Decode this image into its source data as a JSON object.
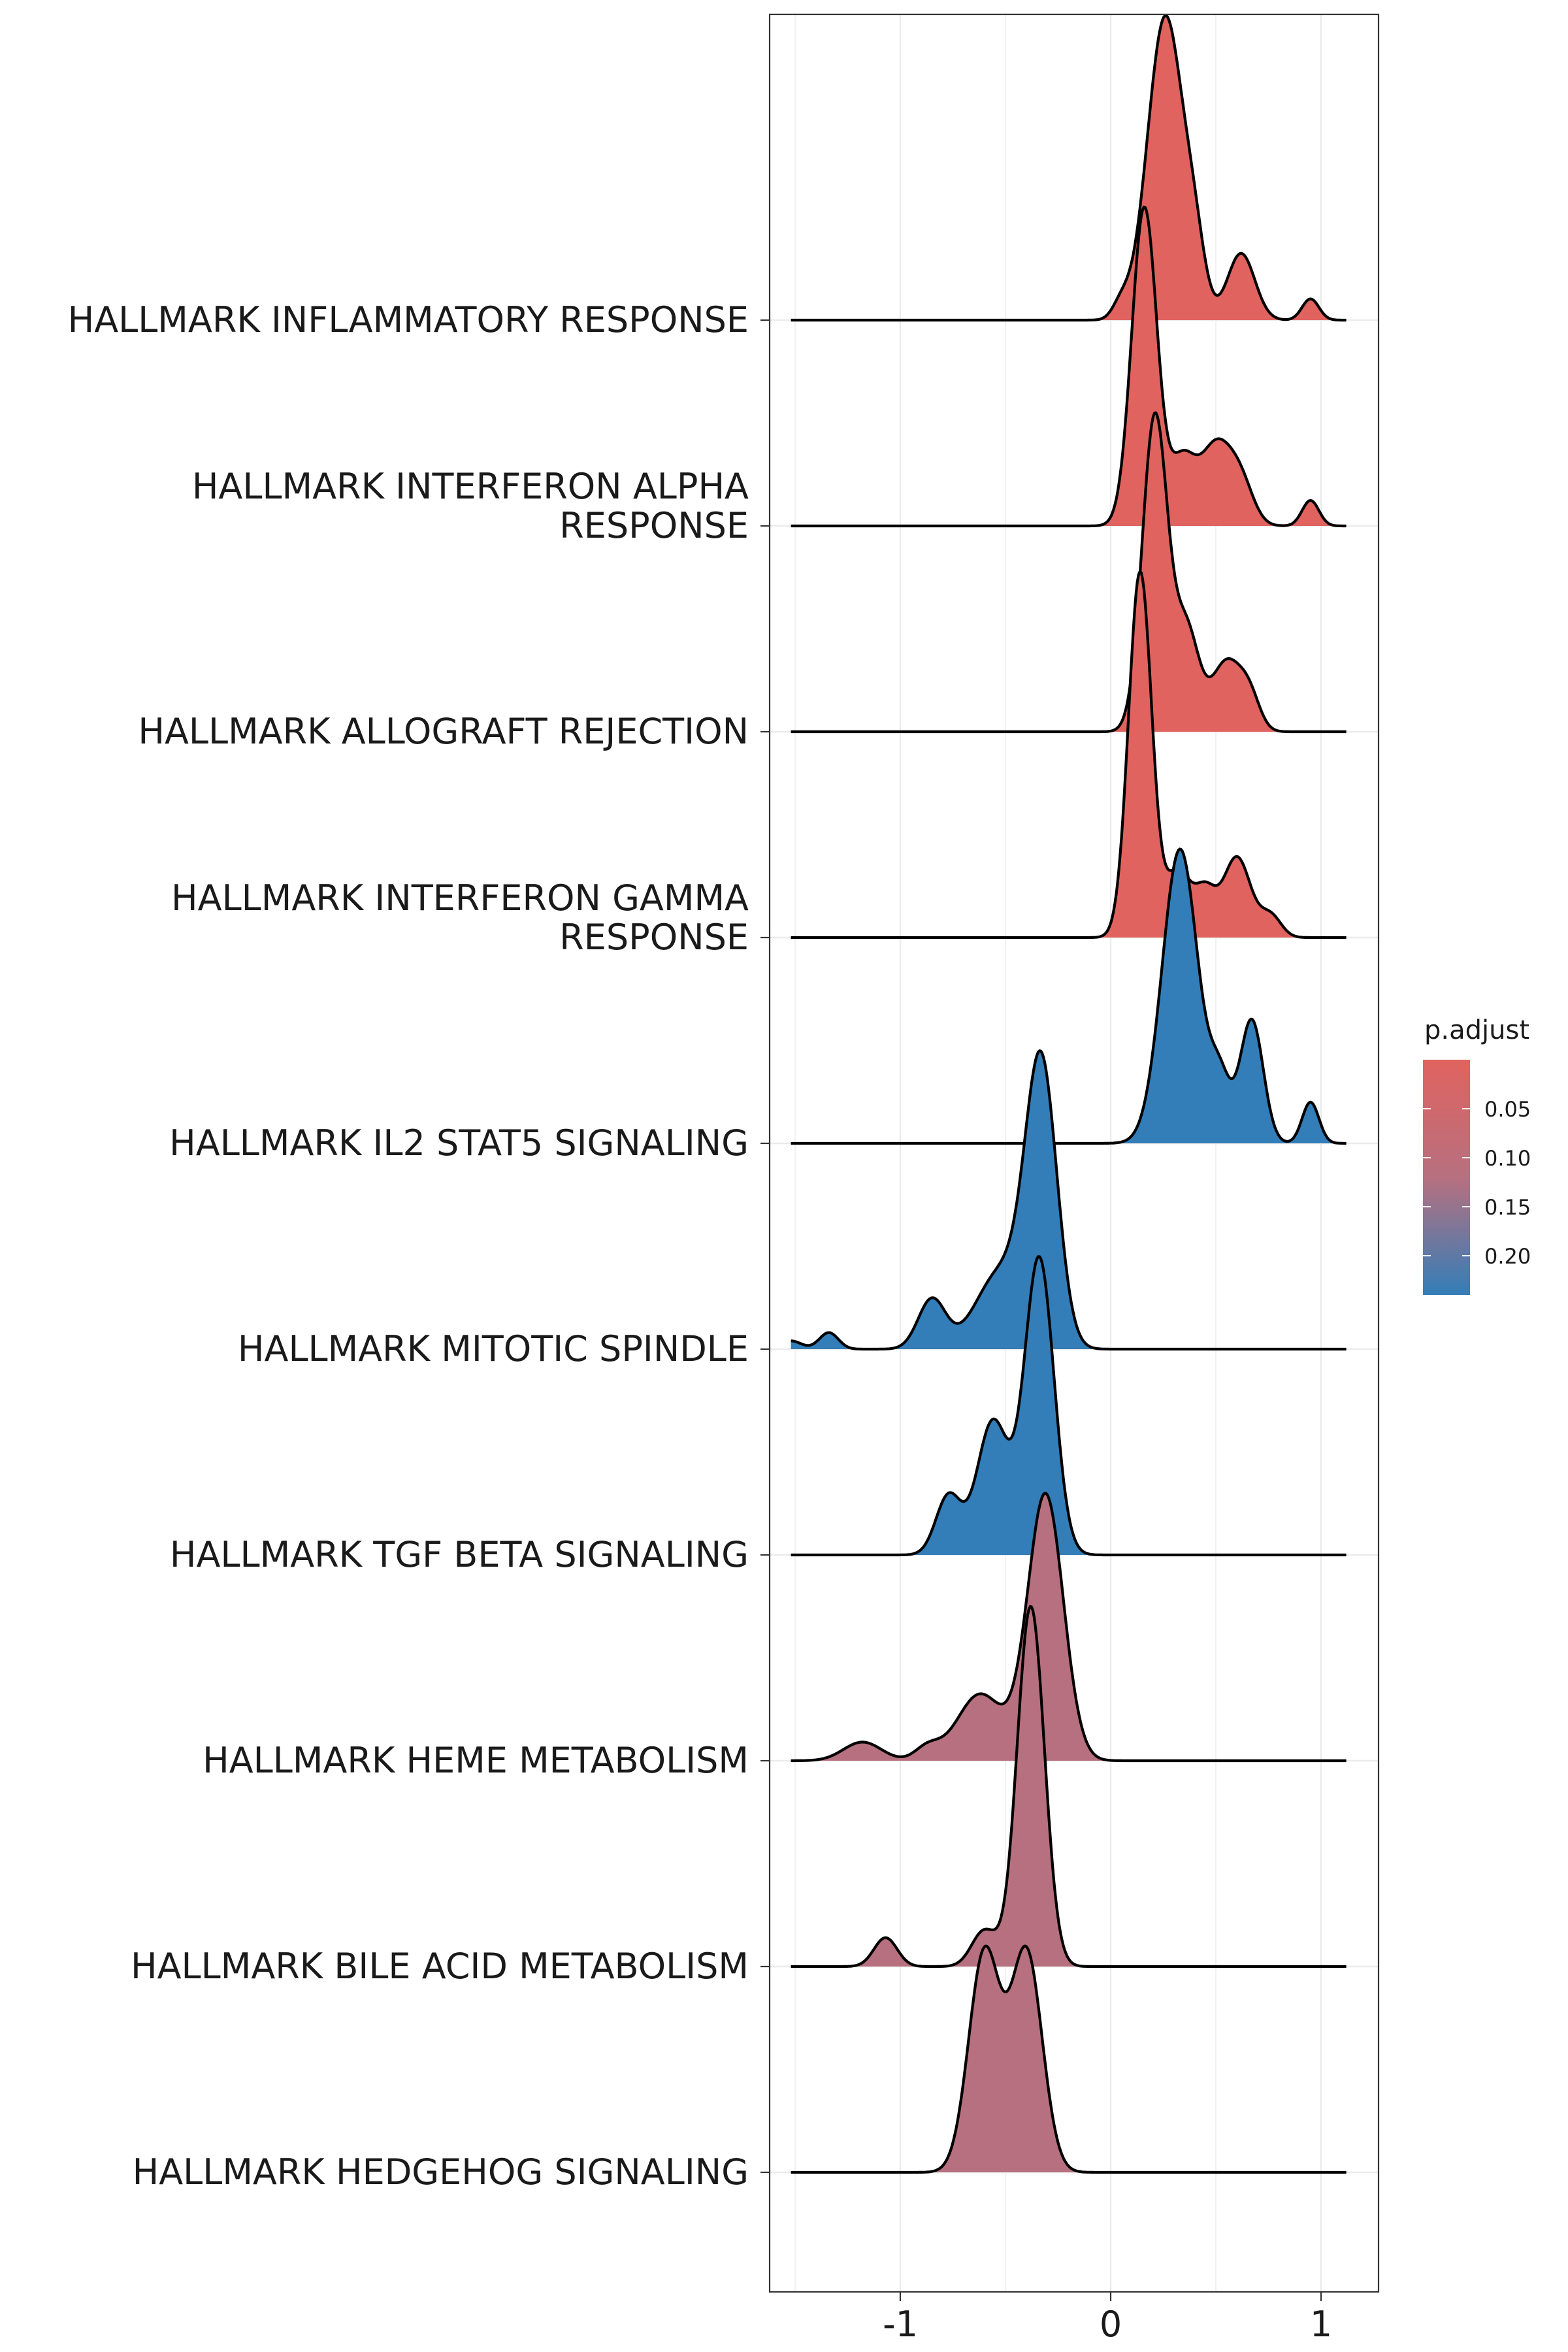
{
  "chart_data": {
    "type": "ridgeline",
    "title": "",
    "xlabel": "",
    "ylabel": "",
    "xlim": [
      -1.65,
      1.25
    ],
    "x_ticks": [
      -1,
      0,
      1
    ],
    "x_tick_labels": [
      "-1",
      "0",
      "1"
    ],
    "grid": true,
    "legend": {
      "title": "p.adjust",
      "placement": "right",
      "ticks": [
        0.05,
        0.1,
        0.15,
        0.2
      ],
      "tick_labels": [
        "0.05",
        "0.10",
        "0.15",
        "0.20"
      ],
      "range": [
        0.0,
        0.24
      ],
      "low_color": "#E0635F",
      "high_color": "#337EB8"
    },
    "series": [
      {
        "label": "HALLMARK INFLAMMATORY RESPONSE",
        "p_adjust": 0.0,
        "fill": "#E0635F",
        "x_range": [
          -1.52,
          1.12
        ],
        "ridge_height": 1.48,
        "peaks": [
          {
            "center": 0.26,
            "sd": 0.085,
            "height": 1.0
          },
          {
            "center": 0.4,
            "sd": 0.05,
            "height": 0.18
          },
          {
            "center": 0.62,
            "sd": 0.065,
            "height": 0.22
          },
          {
            "center": 0.95,
            "sd": 0.04,
            "height": 0.07
          },
          {
            "center": 0.05,
            "sd": 0.04,
            "height": 0.05
          }
        ]
      },
      {
        "label": "HALLMARK INTERFERON ALPHA RESPONSE",
        "label_lines": [
          "HALLMARK INTERFERON ALPHA",
          "RESPONSE"
        ],
        "p_adjust": 0.0,
        "fill": "#E0635F",
        "x_range": [
          -1.52,
          1.12
        ],
        "ridge_height": 1.55,
        "peaks": [
          {
            "center": 0.16,
            "sd": 0.06,
            "height": 1.0
          },
          {
            "center": 0.34,
            "sd": 0.06,
            "height": 0.2
          },
          {
            "center": 0.5,
            "sd": 0.075,
            "height": 0.25
          },
          {
            "center": 0.62,
            "sd": 0.06,
            "height": 0.12
          },
          {
            "center": 0.95,
            "sd": 0.04,
            "height": 0.08
          }
        ]
      },
      {
        "label": "HALLMARK ALLOGRAFT REJECTION",
        "p_adjust": 0.0,
        "fill": "#E0635F",
        "x_range": [
          -1.52,
          1.12
        ],
        "ridge_height": 1.55,
        "peaks": [
          {
            "center": 0.21,
            "sd": 0.06,
            "height": 1.0
          },
          {
            "center": 0.36,
            "sd": 0.06,
            "height": 0.32
          },
          {
            "center": 0.55,
            "sd": 0.07,
            "height": 0.22
          },
          {
            "center": 0.66,
            "sd": 0.05,
            "height": 0.1
          }
        ]
      },
      {
        "label": "HALLMARK INTERFERON GAMMA RESPONSE",
        "label_lines": [
          "HALLMARK INTERFERON GAMMA",
          "RESPONSE"
        ],
        "p_adjust": 0.0,
        "fill": "#E0635F",
        "x_range": [
          -1.52,
          1.12
        ],
        "ridge_height": 1.78,
        "peaks": [
          {
            "center": 0.14,
            "sd": 0.055,
            "height": 1.0
          },
          {
            "center": 0.32,
            "sd": 0.06,
            "height": 0.18
          },
          {
            "center": 0.45,
            "sd": 0.05,
            "height": 0.12
          },
          {
            "center": 0.6,
            "sd": 0.065,
            "height": 0.22
          },
          {
            "center": 0.76,
            "sd": 0.05,
            "height": 0.06
          }
        ]
      },
      {
        "label": "HALLMARK IL2 STAT5 SIGNALING",
        "p_adjust": 0.24,
        "fill": "#337EB8",
        "x_range": [
          -1.52,
          1.12
        ],
        "ridge_height": 1.43,
        "peaks": [
          {
            "center": 0.33,
            "sd": 0.085,
            "height": 1.0
          },
          {
            "center": 0.52,
            "sd": 0.05,
            "height": 0.2
          },
          {
            "center": 0.67,
            "sd": 0.055,
            "height": 0.42
          },
          {
            "center": 0.95,
            "sd": 0.04,
            "height": 0.14
          }
        ]
      },
      {
        "label": "HALLMARK MITOTIC SPINDLE",
        "p_adjust": 0.24,
        "fill": "#337EB8",
        "x_range": [
          -1.52,
          1.12
        ],
        "ridge_height": 1.45,
        "peaks": [
          {
            "center": -0.33,
            "sd": 0.075,
            "height": 1.0
          },
          {
            "center": -0.52,
            "sd": 0.12,
            "height": 0.28
          },
          {
            "center": -0.85,
            "sd": 0.065,
            "height": 0.18
          },
          {
            "center": -1.34,
            "sd": 0.045,
            "height": 0.06
          },
          {
            "center": -1.52,
            "sd": 0.05,
            "height": 0.03
          }
        ]
      },
      {
        "label": "HALLMARK TGF BETA SIGNALING",
        "p_adjust": 0.24,
        "fill": "#337EB8",
        "x_range": [
          -1.52,
          1.12
        ],
        "ridge_height": 1.45,
        "peaks": [
          {
            "center": -0.34,
            "sd": 0.07,
            "height": 1.0
          },
          {
            "center": -0.56,
            "sd": 0.075,
            "height": 0.45
          },
          {
            "center": -0.77,
            "sd": 0.06,
            "height": 0.2
          }
        ]
      },
      {
        "label": "HALLMARK HEME METABOLISM",
        "p_adjust": 0.12,
        "fill": "#B7707F",
        "x_range": [
          -1.52,
          1.12
        ],
        "ridge_height": 1.3,
        "peaks": [
          {
            "center": -0.31,
            "sd": 0.085,
            "height": 1.0
          },
          {
            "center": -0.62,
            "sd": 0.11,
            "height": 0.25
          },
          {
            "center": -0.87,
            "sd": 0.06,
            "height": 0.05
          },
          {
            "center": -1.18,
            "sd": 0.09,
            "height": 0.07
          }
        ]
      },
      {
        "label": "HALLMARK BILE ACID METABOLISM",
        "p_adjust": 0.12,
        "fill": "#B7707F",
        "x_range": [
          -1.52,
          1.12
        ],
        "ridge_height": 1.75,
        "peaks": [
          {
            "center": -0.38,
            "sd": 0.065,
            "height": 1.0
          },
          {
            "center": -0.6,
            "sd": 0.06,
            "height": 0.1
          },
          {
            "center": -1.07,
            "sd": 0.055,
            "height": 0.08
          }
        ]
      },
      {
        "label": "HALLMARK HEDGEHOG SIGNALING",
        "p_adjust": 0.12,
        "fill": "#B7707F",
        "x_range": [
          -1.52,
          1.12
        ],
        "ridge_height": 1.1,
        "peaks": [
          {
            "center": -0.6,
            "sd": 0.075,
            "height": 0.88
          },
          {
            "center": -0.4,
            "sd": 0.075,
            "height": 0.88
          }
        ]
      }
    ]
  }
}
